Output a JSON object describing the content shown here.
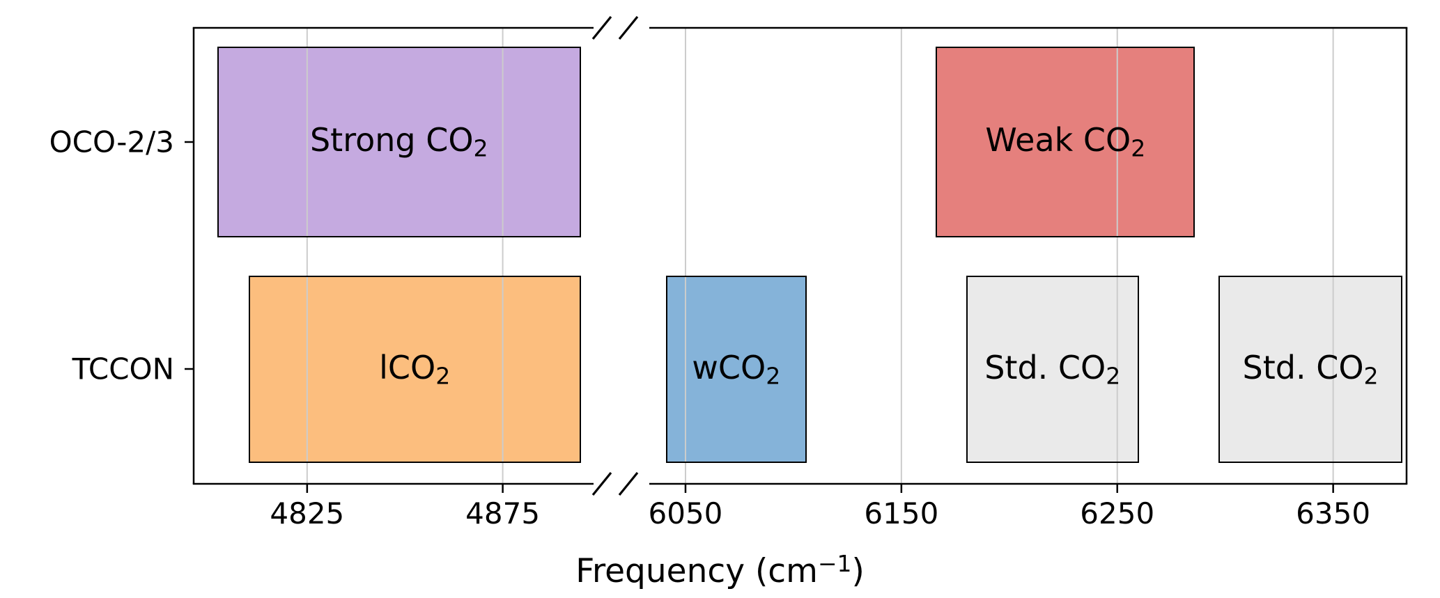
{
  "chart_data": {
    "type": "bar",
    "subtype": "horizontal-span-chart-with-broken-x-axis",
    "title": "",
    "xlabel": "Frequency (cm⁻¹)",
    "xlabel_parts": {
      "pre": "Frequency (cm",
      "sup": "−1",
      "post": ")"
    },
    "ylabel": "",
    "rows": [
      {
        "id": "oco23",
        "label": "OCO-2/3"
      },
      {
        "id": "tccon",
        "label": "TCCON"
      }
    ],
    "x_axis": {
      "unit": "cm-1",
      "grid": true,
      "panels": [
        {
          "xlim": [
            4796,
            4900
          ],
          "ticks": [
            4825,
            4875
          ]
        },
        {
          "xlim": [
            6030,
            6384
          ],
          "ticks": [
            6050,
            6150,
            6250,
            6350
          ]
        }
      ],
      "break_between": [
        4900,
        6030
      ]
    },
    "bands": [
      {
        "row": "OCO-2/3",
        "panel": 0,
        "x_start": 4802,
        "x_end": 4895,
        "label": "Strong CO₂",
        "label_main": "Strong CO",
        "label_sub": "2",
        "color": "#c5aae0"
      },
      {
        "row": "OCO-2/3",
        "panel": 1,
        "x_start": 6166,
        "x_end": 6286,
        "label": "Weak CO₂",
        "label_main": "Weak CO",
        "label_sub": "2",
        "color": "#e5807d"
      },
      {
        "row": "TCCON",
        "panel": 0,
        "x_start": 4810,
        "x_end": 4895,
        "label": "lCO₂",
        "label_main": "lCO",
        "label_sub": "2",
        "color": "#fcbe7e"
      },
      {
        "row": "TCCON",
        "panel": 1,
        "x_start": 6041,
        "x_end": 6106,
        "label": "wCO₂",
        "label_main": "wCO",
        "label_sub": "2",
        "color": "#85b3d9"
      },
      {
        "row": "TCCON",
        "panel": 1,
        "x_start": 6180,
        "x_end": 6260,
        "label": "Std. CO₂",
        "label_main": "Std. CO",
        "label_sub": "2",
        "color": "#eaeaea"
      },
      {
        "row": "TCCON",
        "panel": 1,
        "x_start": 6297,
        "x_end": 6382,
        "label": "Std. CO₂",
        "label_main": "Std. CO",
        "label_sub": "2",
        "color": "#eaeaea"
      }
    ],
    "colors": {
      "grid": "#cccccc",
      "frame": "#000000",
      "text": "#000000"
    }
  }
}
